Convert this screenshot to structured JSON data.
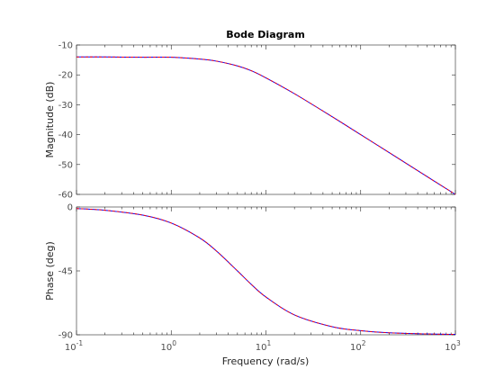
{
  "chart_data": {
    "type": "line",
    "title": "Bode Diagram",
    "xlabel": "Frequency  (rad/s)",
    "x_scale": "log",
    "xlim": [
      0.1,
      1000
    ],
    "x_ticks": [
      {
        "base": "10",
        "exp": "-1"
      },
      {
        "base": "10",
        "exp": "0"
      },
      {
        "base": "10",
        "exp": "1"
      },
      {
        "base": "10",
        "exp": "2"
      },
      {
        "base": "10",
        "exp": "3"
      }
    ],
    "grid": false,
    "colors": {
      "series_a": "#0000ff",
      "series_b": "#ff0000"
    },
    "panels": [
      {
        "name": "magnitude",
        "ylabel": "Magnitude (dB)",
        "ylim": [
          -60,
          -10
        ],
        "yticks": [
          -10,
          -20,
          -30,
          -40,
          -50,
          -60
        ],
        "ytick_labels": [
          "-10",
          "-20",
          "-30",
          "-40",
          "-50",
          "-60"
        ],
        "x": [
          0.1,
          0.2,
          0.5,
          1,
          2,
          3,
          5,
          7,
          10,
          20,
          50,
          100,
          200,
          500,
          1000
        ],
        "series": [
          {
            "values": [
              -14.0,
              -14.0,
              -14.1,
              -14.1,
              -14.7,
              -15.4,
              -17.0,
              -18.6,
              -21.0,
              -26.3,
              -34.0,
              -40.0,
              -46.0,
              -54.0,
              -60.0
            ]
          },
          {
            "values": [
              -14.0,
              -14.0,
              -14.1,
              -14.1,
              -14.7,
              -15.4,
              -17.0,
              -18.6,
              -21.0,
              -26.3,
              -34.0,
              -40.0,
              -46.0,
              -54.0,
              -60.0
            ]
          }
        ]
      },
      {
        "name": "phase",
        "ylabel": "Phase (deg)",
        "ylim": [
          -90,
          0
        ],
        "yticks": [
          0,
          -45,
          -90
        ],
        "ytick_labels": [
          "0",
          "-45",
          "-90"
        ],
        "x": [
          0.1,
          0.2,
          0.5,
          1,
          2,
          3,
          5,
          7,
          10,
          20,
          50,
          100,
          200,
          500,
          1000
        ],
        "series": [
          {
            "values": [
              -1.1,
              -2.3,
              -5.7,
              -11.3,
              -21.8,
              -31.0,
              -45.0,
              -54.5,
              -63.4,
              -76.0,
              -84.3,
              -87.1,
              -88.6,
              -89.4,
              -89.7
            ]
          },
          {
            "values": [
              -1.1,
              -2.3,
              -5.7,
              -11.3,
              -21.8,
              -31.0,
              -45.0,
              -54.5,
              -63.4,
              -76.0,
              -84.3,
              -87.1,
              -88.6,
              -89.4,
              -89.7
            ]
          }
        ]
      }
    ]
  }
}
